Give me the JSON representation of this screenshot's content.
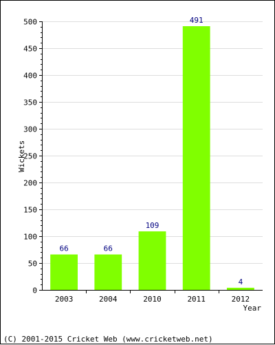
{
  "chart_data": {
    "type": "bar",
    "categories": [
      "2003",
      "2004",
      "2010",
      "2011",
      "2012"
    ],
    "values": [
      66,
      66,
      109,
      491,
      4
    ],
    "xlabel": "Year",
    "ylabel": "Wickets",
    "ylim": [
      0,
      500
    ],
    "yticks": [
      0,
      50,
      100,
      150,
      200,
      250,
      300,
      350,
      400,
      450,
      500
    ],
    "grid": true,
    "data_labels": true,
    "colors": {
      "bar": "#80ff00",
      "label": "#000080",
      "grid": "#dddddd"
    }
  },
  "footer": {
    "copyright": "(C) 2001-2015 Cricket Web (www.cricketweb.net)"
  }
}
